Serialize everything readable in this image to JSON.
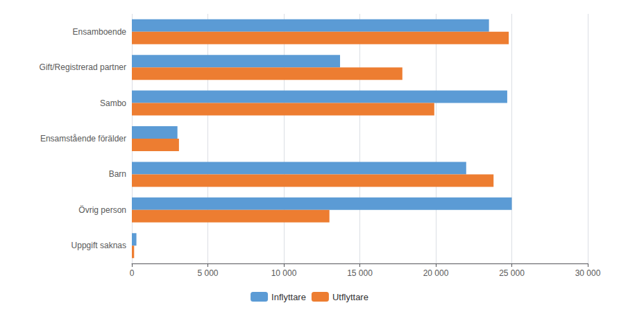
{
  "chart_data": {
    "type": "bar",
    "orientation": "horizontal",
    "categories": [
      "Ensamboende",
      "Gift/Registrerad partner",
      "Sambo",
      "Ensamstående förälder",
      "Barn",
      "Övrig person",
      "Uppgift saknas"
    ],
    "series": [
      {
        "name": "Inflyttare",
        "color": "#5b9bd5",
        "values": [
          23500,
          13700,
          24700,
          3000,
          22000,
          25000,
          300
        ]
      },
      {
        "name": "Utflyttare",
        "color": "#ed7d31",
        "values": [
          24800,
          17800,
          19900,
          3100,
          23800,
          13000,
          150
        ]
      }
    ],
    "xlim": [
      0,
      30000
    ],
    "xticks": [
      0,
      {
        "value": 5000,
        "label": "5 000"
      },
      {
        "value": 10000,
        "label": "10 000"
      },
      {
        "value": 15000,
        "label": "15 000"
      },
      {
        "value": 20000,
        "label": "20 000"
      },
      {
        "value": 25000,
        "label": "25 000"
      },
      {
        "value": 30000,
        "label": "30 000"
      }
    ],
    "grid": true,
    "legend": "bottom"
  }
}
